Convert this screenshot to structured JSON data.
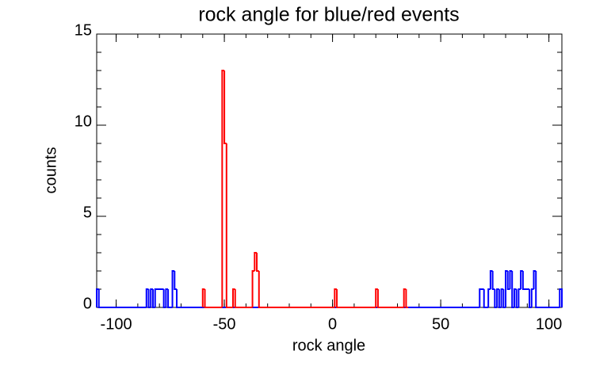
{
  "chart_data": {
    "type": "histogram",
    "title": "rock angle for blue/red events",
    "x_label": "rock angle",
    "y_label": "counts",
    "xlim": [
      -109,
      106
    ],
    "ylim": [
      0,
      15
    ],
    "xticks": [
      -100,
      -50,
      0,
      50,
      100
    ],
    "yticks": [
      0,
      5,
      10,
      15
    ],
    "xminorticks": [
      -100,
      -90,
      -80,
      -70,
      -60,
      -50,
      -40,
      -30,
      -20,
      -10,
      0,
      10,
      20,
      30,
      40,
      50,
      60,
      70,
      80,
      90,
      100
    ],
    "yminorticks": [
      1,
      2,
      3,
      4,
      6,
      7,
      8,
      9,
      11,
      12,
      13,
      14
    ],
    "series": [
      {
        "color": "#0000ff",
        "bins": [
          -109,
          -108,
          -86,
          -85,
          -84,
          -83,
          -82,
          -78,
          -77,
          -76,
          -74,
          -73,
          -72,
          68,
          70,
          72,
          73,
          74,
          75,
          76,
          77,
          78,
          79,
          80,
          81,
          82,
          83,
          84,
          85,
          86,
          87,
          88,
          91,
          92,
          93,
          94,
          105,
          106
        ],
        "values": [
          1,
          0,
          1,
          0,
          1,
          0,
          1,
          0,
          1,
          0,
          2,
          1,
          0,
          1,
          0,
          1,
          2,
          1,
          0,
          1,
          0,
          1,
          0,
          2,
          1,
          2,
          0,
          1,
          0,
          1,
          2,
          1,
          0,
          1,
          2,
          0,
          1
        ]
      },
      {
        "color": "#ff0000",
        "bins": [
          -60,
          -59,
          -51,
          -50,
          -49,
          -46,
          -45,
          -37,
          -36,
          -35,
          -34,
          1,
          2,
          20,
          21,
          33,
          34,
          35
        ],
        "values": [
          1,
          0,
          13,
          9,
          0,
          1,
          0,
          2,
          3,
          2,
          0,
          1,
          0,
          1,
          0,
          1,
          0
        ]
      }
    ]
  }
}
